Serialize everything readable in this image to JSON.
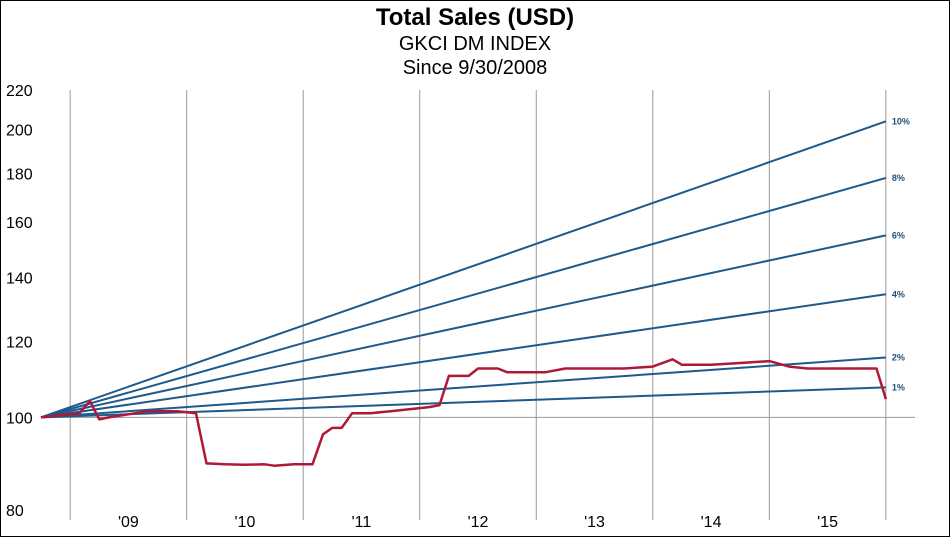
{
  "colors": {
    "trend": "#1f5a8c",
    "sales": "#b01837",
    "grid": "#999999"
  },
  "chart_data": {
    "type": "line",
    "title": "Total Sales (USD)",
    "subtitle": "GKCI DM INDEX",
    "subtitle2": "Since 9/30/2008",
    "y_scale": "log",
    "ylim": [
      80,
      220
    ],
    "yticks": [
      80,
      100,
      120,
      140,
      160,
      180,
      200,
      220
    ],
    "xlim": [
      2008.75,
      2016.25
    ],
    "xticks": [
      {
        "label": "'09",
        "x": 2009.5
      },
      {
        "label": "'10",
        "x": 2010.5
      },
      {
        "label": "'11",
        "x": 2011.5
      },
      {
        "label": "'12",
        "x": 2012.5
      },
      {
        "label": "'13",
        "x": 2013.5
      },
      {
        "label": "'14",
        "x": 2014.5
      },
      {
        "label": "'15",
        "x": 2015.5
      }
    ],
    "gridlines_x": [
      2009,
      2010,
      2011,
      2012,
      2013,
      2014,
      2015,
      2016
    ],
    "reference_lines": [
      {
        "label": "10%",
        "start": [
          2008.75,
          100
        ],
        "end": [
          2016.0,
          204
        ]
      },
      {
        "label": "8%",
        "start": [
          2008.75,
          100
        ],
        "end": [
          2016.0,
          178
        ]
      },
      {
        "label": "6%",
        "start": [
          2008.75,
          100
        ],
        "end": [
          2016.0,
          155
        ]
      },
      {
        "label": "4%",
        "start": [
          2008.75,
          100
        ],
        "end": [
          2016.0,
          134.5
        ]
      },
      {
        "label": "2%",
        "start": [
          2008.75,
          100
        ],
        "end": [
          2016.0,
          115.5
        ]
      },
      {
        "label": "1%",
        "start": [
          2008.75,
          100
        ],
        "end": [
          2016.0,
          107.5
        ]
      }
    ],
    "series": [
      {
        "values": [
          [
            2008.75,
            100
          ],
          [
            2009.08,
            101
          ],
          [
            2009.17,
            104
          ],
          [
            2009.25,
            99.5
          ],
          [
            2009.33,
            100
          ],
          [
            2009.67,
            101.5
          ],
          [
            2009.92,
            101.5
          ],
          [
            2010.08,
            101
          ],
          [
            2010.17,
            89.5
          ],
          [
            2010.33,
            89.3
          ],
          [
            2010.5,
            89.2
          ],
          [
            2010.67,
            89.3
          ],
          [
            2010.75,
            89
          ],
          [
            2010.92,
            89.3
          ],
          [
            2011.08,
            89.3
          ],
          [
            2011.17,
            96
          ],
          [
            2011.25,
            97.5
          ],
          [
            2011.33,
            97.5
          ],
          [
            2011.42,
            101
          ],
          [
            2011.58,
            101
          ],
          [
            2011.75,
            101.5
          ],
          [
            2011.92,
            102
          ],
          [
            2012.08,
            102.5
          ],
          [
            2012.17,
            103
          ],
          [
            2012.25,
            110.5
          ],
          [
            2012.42,
            110.5
          ],
          [
            2012.5,
            112.5
          ],
          [
            2012.67,
            112.5
          ],
          [
            2012.75,
            111.5
          ],
          [
            2012.92,
            111.5
          ],
          [
            2013.08,
            111.5
          ],
          [
            2013.25,
            112.5
          ],
          [
            2013.42,
            112.5
          ],
          [
            2013.58,
            112.5
          ],
          [
            2013.75,
            112.5
          ],
          [
            2014.0,
            113
          ],
          [
            2014.17,
            115
          ],
          [
            2014.25,
            113.5
          ],
          [
            2014.5,
            113.5
          ],
          [
            2014.75,
            114
          ],
          [
            2015.0,
            114.5
          ],
          [
            2015.17,
            113
          ],
          [
            2015.33,
            112.5
          ],
          [
            2015.5,
            112.5
          ],
          [
            2015.75,
            112.5
          ],
          [
            2015.92,
            112.5
          ],
          [
            2016.0,
            104.5
          ]
        ]
      }
    ]
  }
}
